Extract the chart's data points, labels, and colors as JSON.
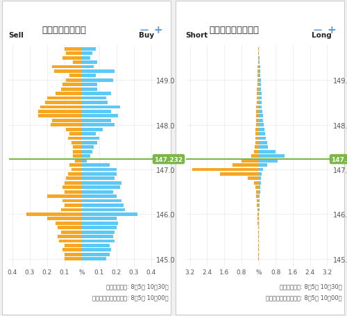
{
  "title_left": "オープンオーダー",
  "title_right": "オープンポジション",
  "label_sell": "Sell",
  "label_buy": "Buy",
  "label_short": "Short",
  "label_long": "Long",
  "current_price": 147.232,
  "current_price_label": "147.232",
  "price_min": 144.82,
  "price_max": 149.78,
  "color_buy": "#5BC8F5",
  "color_sell": "#F5A623",
  "color_line": "#7AB648",
  "color_label_bg": "#7AB648",
  "color_bg": "#FFFFFF",
  "color_panel_border": "#CCCCCC",
  "color_grid": "#E8E8E8",
  "color_text": "#555555",
  "color_header_text": "#333333",
  "color_minus": "#5B9BD5",
  "color_plus": "#5B9BD5",
  "footnote_line1": "最新更新時間: 8月5日 10時30分",
  "footnote_line2": "スナップショット時間: 8月5日 10時00分",
  "prices": [
    149.7,
    149.6,
    149.5,
    149.4,
    149.3,
    149.2,
    149.1,
    149.0,
    148.9,
    148.8,
    148.7,
    148.6,
    148.5,
    148.4,
    148.3,
    148.2,
    148.1,
    148.0,
    147.9,
    147.8,
    147.7,
    147.6,
    147.5,
    147.4,
    147.3,
    147.2,
    147.1,
    147.0,
    146.9,
    146.8,
    146.7,
    146.6,
    146.5,
    146.4,
    146.3,
    146.2,
    146.1,
    146.0,
    145.9,
    145.8,
    145.7,
    145.6,
    145.5,
    145.4,
    145.3,
    145.2,
    145.1,
    145.0
  ],
  "order_buy": [
    0.08,
    0.06,
    0.05,
    0.09,
    0.07,
    0.19,
    0.08,
    0.18,
    0.09,
    0.09,
    0.17,
    0.14,
    0.15,
    0.22,
    0.17,
    0.21,
    0.17,
    0.19,
    0.12,
    0.08,
    0.1,
    0.09,
    0.07,
    0.06,
    0.05,
    0.03,
    0.16,
    0.2,
    0.2,
    0.19,
    0.23,
    0.22,
    0.18,
    0.2,
    0.23,
    0.24,
    0.25,
    0.32,
    0.2,
    0.21,
    0.2,
    0.19,
    0.18,
    0.19,
    0.16,
    0.17,
    0.16,
    0.14
  ],
  "order_sell": [
    0.1,
    0.09,
    0.11,
    0.05,
    0.17,
    0.16,
    0.07,
    0.09,
    0.11,
    0.12,
    0.15,
    0.2,
    0.21,
    0.24,
    0.25,
    0.25,
    0.17,
    0.18,
    0.09,
    0.07,
    0.08,
    0.06,
    0.05,
    0.05,
    0.05,
    0.04,
    0.07,
    0.06,
    0.08,
    0.09,
    0.1,
    0.11,
    0.1,
    0.2,
    0.11,
    0.1,
    0.12,
    0.32,
    0.2,
    0.15,
    0.14,
    0.12,
    0.14,
    0.13,
    0.1,
    0.11,
    0.1,
    0.1
  ],
  "pos_long": [
    0.02,
    0.03,
    0.04,
    0.05,
    0.07,
    0.08,
    0.09,
    0.1,
    0.11,
    0.12,
    0.13,
    0.14,
    0.15,
    0.16,
    0.17,
    0.2,
    0.22,
    0.25,
    0.28,
    0.3,
    0.35,
    0.4,
    0.45,
    0.8,
    1.2,
    0.9,
    0.4,
    0.2,
    0.15,
    0.12,
    0.1,
    0.08,
    0.07,
    0.06,
    0.05,
    0.04,
    0.04,
    0.03,
    0.03,
    0.03,
    0.02,
    0.02,
    0.02,
    0.02,
    0.02,
    0.02,
    0.02,
    0.02
  ],
  "pos_short": [
    0.02,
    0.02,
    0.03,
    0.03,
    0.04,
    0.04,
    0.05,
    0.05,
    0.06,
    0.07,
    0.07,
    0.08,
    0.09,
    0.1,
    0.1,
    0.11,
    0.12,
    0.12,
    0.13,
    0.14,
    0.15,
    0.16,
    0.17,
    0.2,
    0.35,
    0.8,
    1.2,
    3.1,
    1.8,
    0.5,
    0.2,
    0.15,
    0.12,
    0.1,
    0.08,
    0.07,
    0.06,
    0.05,
    0.04,
    0.04,
    0.03,
    0.03,
    0.03,
    0.02,
    0.02,
    0.02,
    0.02,
    0.02
  ]
}
